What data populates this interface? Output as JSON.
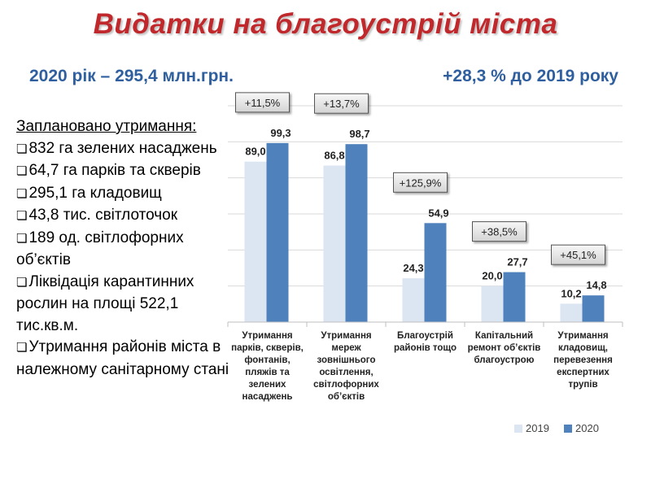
{
  "slide": {
    "title": "Видатки на благоустрій міста",
    "subtitle_left": "2020 рік – 295,4 млн.грн.",
    "subtitle_right": "+28,3 % до 2019 року"
  },
  "planned": {
    "heading": "Заплановано утримання:",
    "items": [
      "832 га зелених насаджень",
      "64,7 га парків та скверів",
      "295,1 га кладовищ",
      "43,8 тис. світлоточок",
      "189 од. світлофорних об’єктів",
      "Ліквідація карантинних рослин на площі 522,1 тис.кв.м.",
      "Утримання районів міста  в належному санітарному стані"
    ]
  },
  "colors": {
    "series_2019": "#dce6f2",
    "series_2020": "#4f81bd",
    "title": "#c0282c",
    "subtitle": "#2f5f9e"
  },
  "chart_data": {
    "type": "bar",
    "ylim": [
      0,
      120
    ],
    "grid": true,
    "legend": "bottom-right",
    "categories": [
      [
        "Утримання",
        "парків, скверів,",
        "фонтанів,",
        "пляжів та",
        "зелених",
        "насаджень"
      ],
      [
        "Утримання",
        "мереж",
        "зовнішнього",
        "освітлення,",
        "світлофорних",
        "об’єктів"
      ],
      [
        "Благоустрій",
        "районів тощо"
      ],
      [
        "Капітальний",
        "ремонт об’єктів",
        "благоустрою"
      ],
      [
        "Утримання",
        "кладовищ,",
        "перевезення",
        "експертних",
        "трупів"
      ]
    ],
    "series": [
      {
        "name": "2019",
        "values": [
          89.0,
          86.8,
          24.3,
          20.0,
          10.2
        ],
        "labels": [
          "89,0",
          "86,8",
          "24,3",
          "20,0",
          "10,2"
        ]
      },
      {
        "name": "2020",
        "values": [
          99.3,
          98.7,
          54.9,
          27.7,
          14.8
        ],
        "labels": [
          "99,3",
          "98,7",
          "54,9",
          "27,7",
          "14,8"
        ]
      }
    ],
    "growth_labels": [
      "+11,5%",
      "+13,7%",
      "+125,9%",
      "+38,5%",
      "+45,1%"
    ]
  }
}
